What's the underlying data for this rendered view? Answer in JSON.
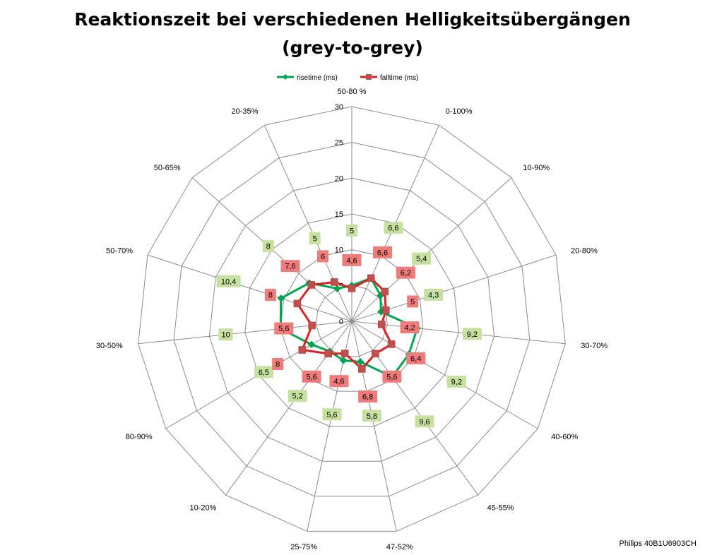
{
  "chart_data": {
    "type": "radar",
    "title": [
      "Reaktionszeit bei verschiedenen Helligkeitsübergängen",
      "(grey-to-grey)"
    ],
    "categories": [
      "50-80 %",
      "0-100%",
      "10-90%",
      "20-80%",
      "30-70%",
      "40-60%",
      "45-55%",
      "47-52%",
      "25-75%",
      "10-20%",
      "80-90%",
      "30-50%",
      "50-70%",
      "50-65%",
      "20-35%"
    ],
    "radial_ticks": [
      "0",
      "5",
      "10",
      "15",
      "20",
      "25",
      "30"
    ],
    "rlim": [
      0,
      30
    ],
    "grid": true,
    "legend_position": "top",
    "series": [
      {
        "name": "risetime (ms)",
        "color": "#00a650",
        "label_bg": "#c6e0a0",
        "values": [
          5,
          6.6,
          5.4,
          4.3,
          9.2,
          9.2,
          9.6,
          5.8,
          5.6,
          5.2,
          6.5,
          10,
          10.4,
          8,
          5
        ],
        "labels": [
          "5",
          "6,6",
          "5,4",
          "4,3",
          "9,2",
          "9,2",
          "9,6",
          "5,8",
          "5,6",
          "5,2",
          "6,5",
          "10",
          "10,4",
          "8",
          "5"
        ]
      },
      {
        "name": "falltime (ms)",
        "color": "#dd2222",
        "label_bg": "#ef7b7b",
        "values": [
          4.6,
          6.6,
          6.2,
          5,
          4.2,
          6.4,
          5.6,
          6.8,
          4.6,
          5.6,
          8,
          5.6,
          8,
          7.6,
          6
        ],
        "labels": [
          "4,6",
          "6,6",
          "6,2",
          "5",
          "4,2",
          "6,4",
          "5,6",
          "6,8",
          "4,6",
          "5,6",
          "8",
          "5,6",
          "8",
          "7,6",
          "6"
        ]
      }
    ]
  },
  "footer": "Philips 40B1U6903CH"
}
